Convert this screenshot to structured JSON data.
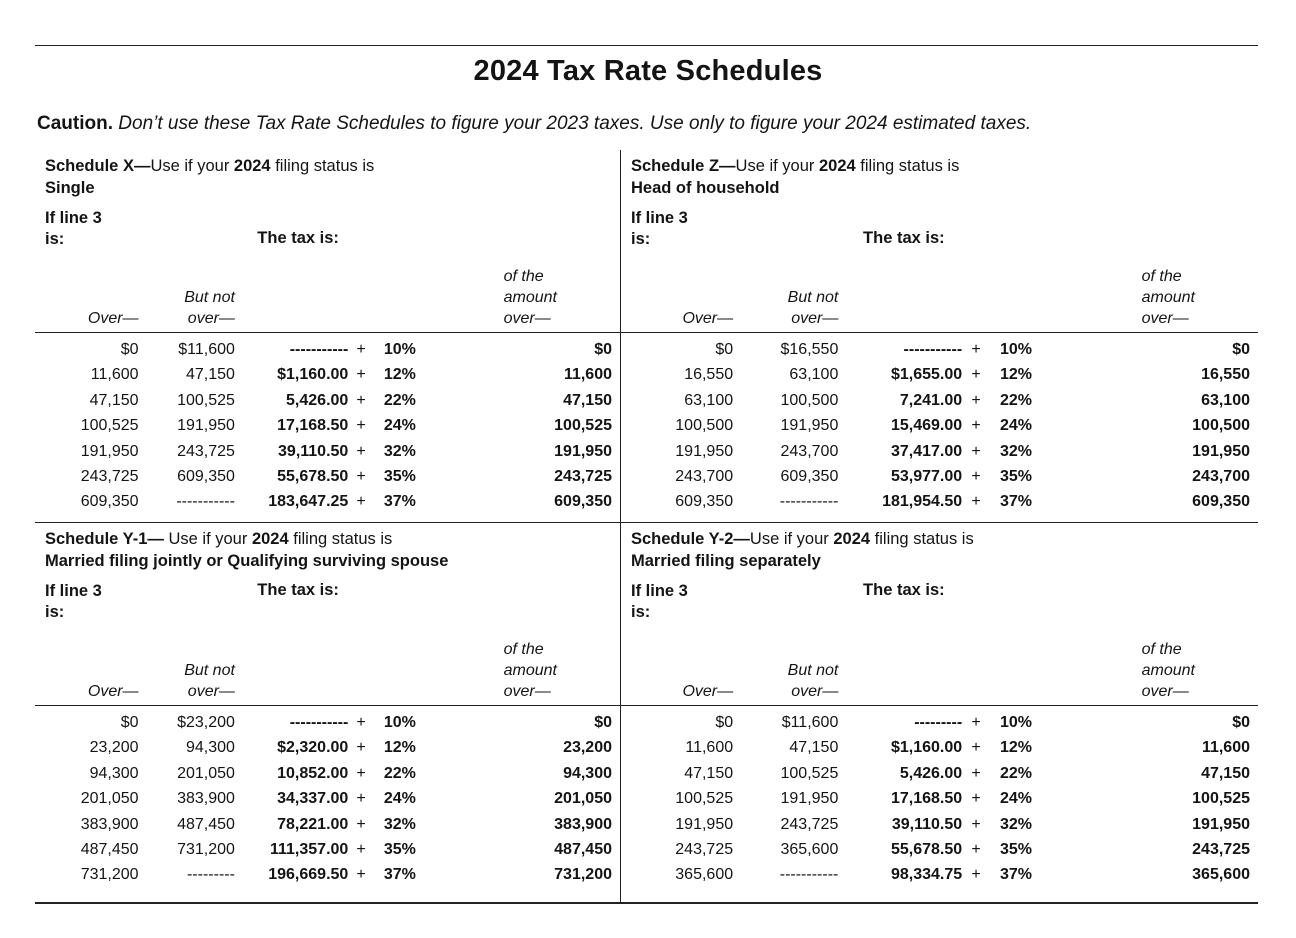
{
  "page": {
    "title": "2024 Tax Rate Schedules",
    "caution_label": "Caution.",
    "caution_text": "Don’t use these Tax Rate Schedules to figure your 2023 taxes. Use only to figure your 2024 estimated taxes."
  },
  "labels": {
    "if_line3": "If line 3",
    "is": "is:",
    "tax_is": "The tax is:",
    "over": "Over—",
    "but_not": "But not",
    "not_over": "over—",
    "of_the": "of the",
    "amount": "amount",
    "amount_over": "over—",
    "plus": "+"
  },
  "schedules": [
    {
      "id": "schedule-x",
      "title_bold": "Schedule X—",
      "title_use": "Use if your ",
      "title_year": "2024",
      "title_suffix": " filing status is",
      "filing_status": "Single",
      "rows": [
        {
          "over": "$0",
          "but_not_over": "$11,600",
          "base": "-----------",
          "rate": "10%",
          "of_amount_over": "$0"
        },
        {
          "over": "11,600",
          "but_not_over": "47,150",
          "base": "$1,160.00",
          "rate": "12%",
          "of_amount_over": "11,600"
        },
        {
          "over": "47,150",
          "but_not_over": "100,525",
          "base": "5,426.00",
          "rate": "22%",
          "of_amount_over": "47,150"
        },
        {
          "over": "100,525",
          "but_not_over": "191,950",
          "base": "17,168.50",
          "rate": "24%",
          "of_amount_over": "100,525"
        },
        {
          "over": "191,950",
          "but_not_over": "243,725",
          "base": "39,110.50",
          "rate": "32%",
          "of_amount_over": "191,950"
        },
        {
          "over": "243,725",
          "but_not_over": "609,350",
          "base": "55,678.50",
          "rate": "35%",
          "of_amount_over": "243,725"
        },
        {
          "over": "609,350",
          "but_not_over": "-----------",
          "base": "183,647.25",
          "rate": "37%",
          "of_amount_over": "609,350"
        }
      ]
    },
    {
      "id": "schedule-z",
      "title_bold": "Schedule Z—",
      "title_use": "Use if your ",
      "title_year": "2024",
      "title_suffix": " filing status is",
      "filing_status": "Head of household",
      "rows": [
        {
          "over": "$0",
          "but_not_over": "$16,550",
          "base": "-----------",
          "rate": "10%",
          "of_amount_over": "$0"
        },
        {
          "over": "16,550",
          "but_not_over": "63,100",
          "base": "$1,655.00",
          "rate": "12%",
          "of_amount_over": "16,550"
        },
        {
          "over": "63,100",
          "but_not_over": "100,500",
          "base": "7,241.00",
          "rate": "22%",
          "of_amount_over": "63,100"
        },
        {
          "over": "100,500",
          "but_not_over": "191,950",
          "base": "15,469.00",
          "rate": "24%",
          "of_amount_over": "100,500"
        },
        {
          "over": "191,950",
          "but_not_over": "243,700",
          "base": "37,417.00",
          "rate": "32%",
          "of_amount_over": "191,950"
        },
        {
          "over": "243,700",
          "but_not_over": "609,350",
          "base": "53,977.00",
          "rate": "35%",
          "of_amount_over": "243,700"
        },
        {
          "over": "609,350",
          "but_not_over": "-----------",
          "base": "181,954.50",
          "rate": "37%",
          "of_amount_over": "609,350"
        }
      ]
    },
    {
      "id": "schedule-y1",
      "title_bold": "Schedule Y-1— ",
      "title_use": "Use if your ",
      "title_year": "2024",
      "title_suffix": " filing status is",
      "filing_status": "Married filing jointly or Qualifying surviving spouse",
      "rows": [
        {
          "over": "$0",
          "but_not_over": "$23,200",
          "base": "-----------",
          "rate": "10%",
          "of_amount_over": "$0"
        },
        {
          "over": "23,200",
          "but_not_over": "94,300",
          "base": "$2,320.00",
          "rate": "12%",
          "of_amount_over": "23,200"
        },
        {
          "over": "94,300",
          "but_not_over": "201,050",
          "base": "10,852.00",
          "rate": "22%",
          "of_amount_over": "94,300"
        },
        {
          "over": "201,050",
          "but_not_over": "383,900",
          "base": "34,337.00",
          "rate": "24%",
          "of_amount_over": "201,050"
        },
        {
          "over": "383,900",
          "but_not_over": "487,450",
          "base": "78,221.00",
          "rate": "32%",
          "of_amount_over": "383,900"
        },
        {
          "over": "487,450",
          "but_not_over": "731,200",
          "base": "111,357.00",
          "rate": "35%",
          "of_amount_over": "487,450"
        },
        {
          "over": "731,200",
          "but_not_over": "---------",
          "base": "196,669.50",
          "rate": "37%",
          "of_amount_over": "731,200"
        }
      ]
    },
    {
      "id": "schedule-y2",
      "title_bold": "Schedule Y-2—",
      "title_use": "Use if your ",
      "title_year": "2024",
      "title_suffix": " filing status is",
      "filing_status": "Married filing separately",
      "rows": [
        {
          "over": "$0",
          "but_not_over": "$11,600",
          "base": "---------",
          "rate": "10%",
          "of_amount_over": "$0"
        },
        {
          "over": "11,600",
          "but_not_over": "47,150",
          "base": "$1,160.00",
          "rate": "12%",
          "of_amount_over": "11,600"
        },
        {
          "over": "47,150",
          "but_not_over": "100,525",
          "base": "5,426.00",
          "rate": "22%",
          "of_amount_over": "47,150"
        },
        {
          "over": "100,525",
          "but_not_over": "191,950",
          "base": "17,168.50",
          "rate": "24%",
          "of_amount_over": "100,525"
        },
        {
          "over": "191,950",
          "but_not_over": "243,725",
          "base": "39,110.50",
          "rate": "32%",
          "of_amount_over": "191,950"
        },
        {
          "over": "243,725",
          "but_not_over": "365,600",
          "base": "55,678.50",
          "rate": "35%",
          "of_amount_over": "243,725"
        },
        {
          "over": "365,600",
          "but_not_over": "-----------",
          "base": "98,334.75",
          "rate": "37%",
          "of_amount_over": "365,600"
        }
      ]
    }
  ]
}
